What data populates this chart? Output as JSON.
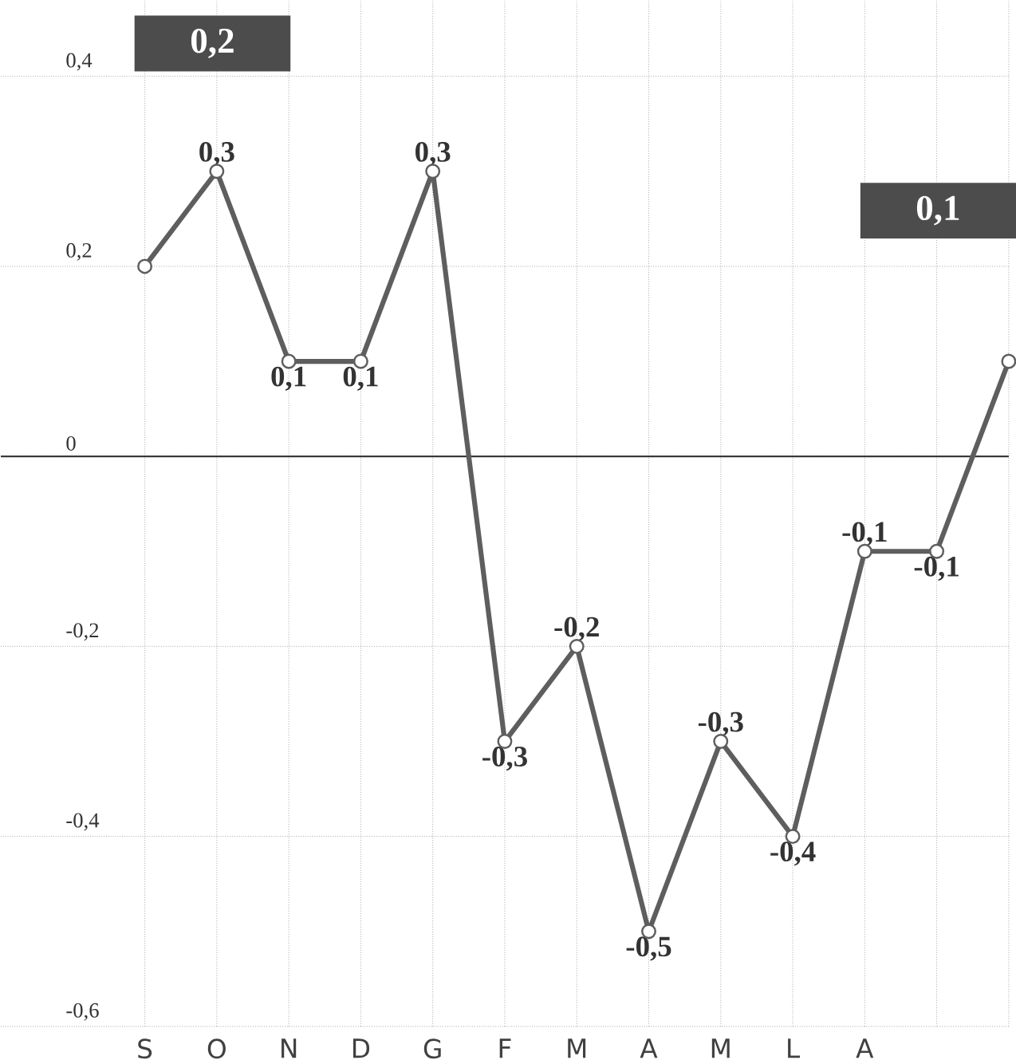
{
  "chart_data": {
    "type": "line",
    "categories": [
      "S",
      "O",
      "N",
      "D",
      "G",
      "F",
      "M",
      "A",
      "M",
      "L",
      "A",
      null,
      null
    ],
    "values": [
      0.2,
      0.3,
      0.1,
      0.1,
      0.3,
      -0.3,
      -0.2,
      -0.5,
      -0.3,
      -0.4,
      -0.1,
      -0.1,
      0.1
    ],
    "value_labels": [
      null,
      "0,3",
      "0,1",
      "0,1",
      "0,3",
      "-0,3",
      "-0,2",
      "-0,5",
      "-0,3",
      "-0,4",
      "-0,1",
      "-0,1",
      null
    ],
    "color": "#5e5e5e",
    "marker": "circle",
    "ylim": [
      -0.6,
      0.48
    ],
    "yticks": [
      {
        "value": -0.6,
        "label": "-0,6"
      },
      {
        "value": -0.4,
        "label": "-0,4"
      },
      {
        "value": -0.2,
        "label": "-0,2"
      },
      {
        "value": 0,
        "label": "0"
      },
      {
        "value": 0.2,
        "label": "0,2"
      },
      {
        "value": 0.4,
        "label": "0,4"
      }
    ],
    "grid": true,
    "ref_lines": [
      {
        "axis": "y",
        "value": 0
      }
    ],
    "annotations": [
      "0,2",
      "0,1"
    ]
  }
}
